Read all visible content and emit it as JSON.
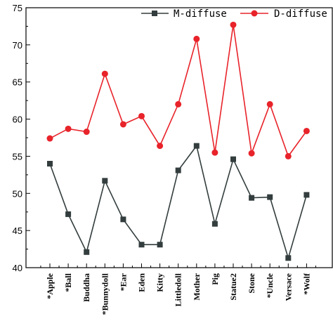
{
  "chart_data": {
    "type": "line",
    "categories": [
      "*Apple",
      "*Ball",
      "Buddha",
      "*Bunnydoll",
      "*Ear",
      "Eden",
      "Kitty",
      "Littledoll",
      "Mother",
      "Pig",
      "Statue2",
      "Stone",
      "*Uncle",
      "Versace",
      "*Wolf"
    ],
    "series": [
      {
        "name": "M-diffuse",
        "values": [
          54.0,
          47.2,
          42.1,
          51.7,
          46.5,
          43.1,
          43.1,
          53.1,
          56.4,
          45.9,
          54.6,
          49.4,
          49.5,
          41.3,
          49.8
        ],
        "color": "#333d3d",
        "marker": "square"
      },
      {
        "name": "D-diffuse",
        "values": [
          57.4,
          58.7,
          58.3,
          66.1,
          59.3,
          60.4,
          56.4,
          62.0,
          70.8,
          55.5,
          72.7,
          55.4,
          62.0,
          55.0,
          58.4
        ],
        "color": "#e8232a",
        "marker": "circle"
      }
    ],
    "ylim": [
      40,
      75
    ],
    "yticks": [
      40,
      45,
      50,
      55,
      60,
      65,
      70,
      75
    ],
    "legend_position": "top",
    "grid": false
  }
}
